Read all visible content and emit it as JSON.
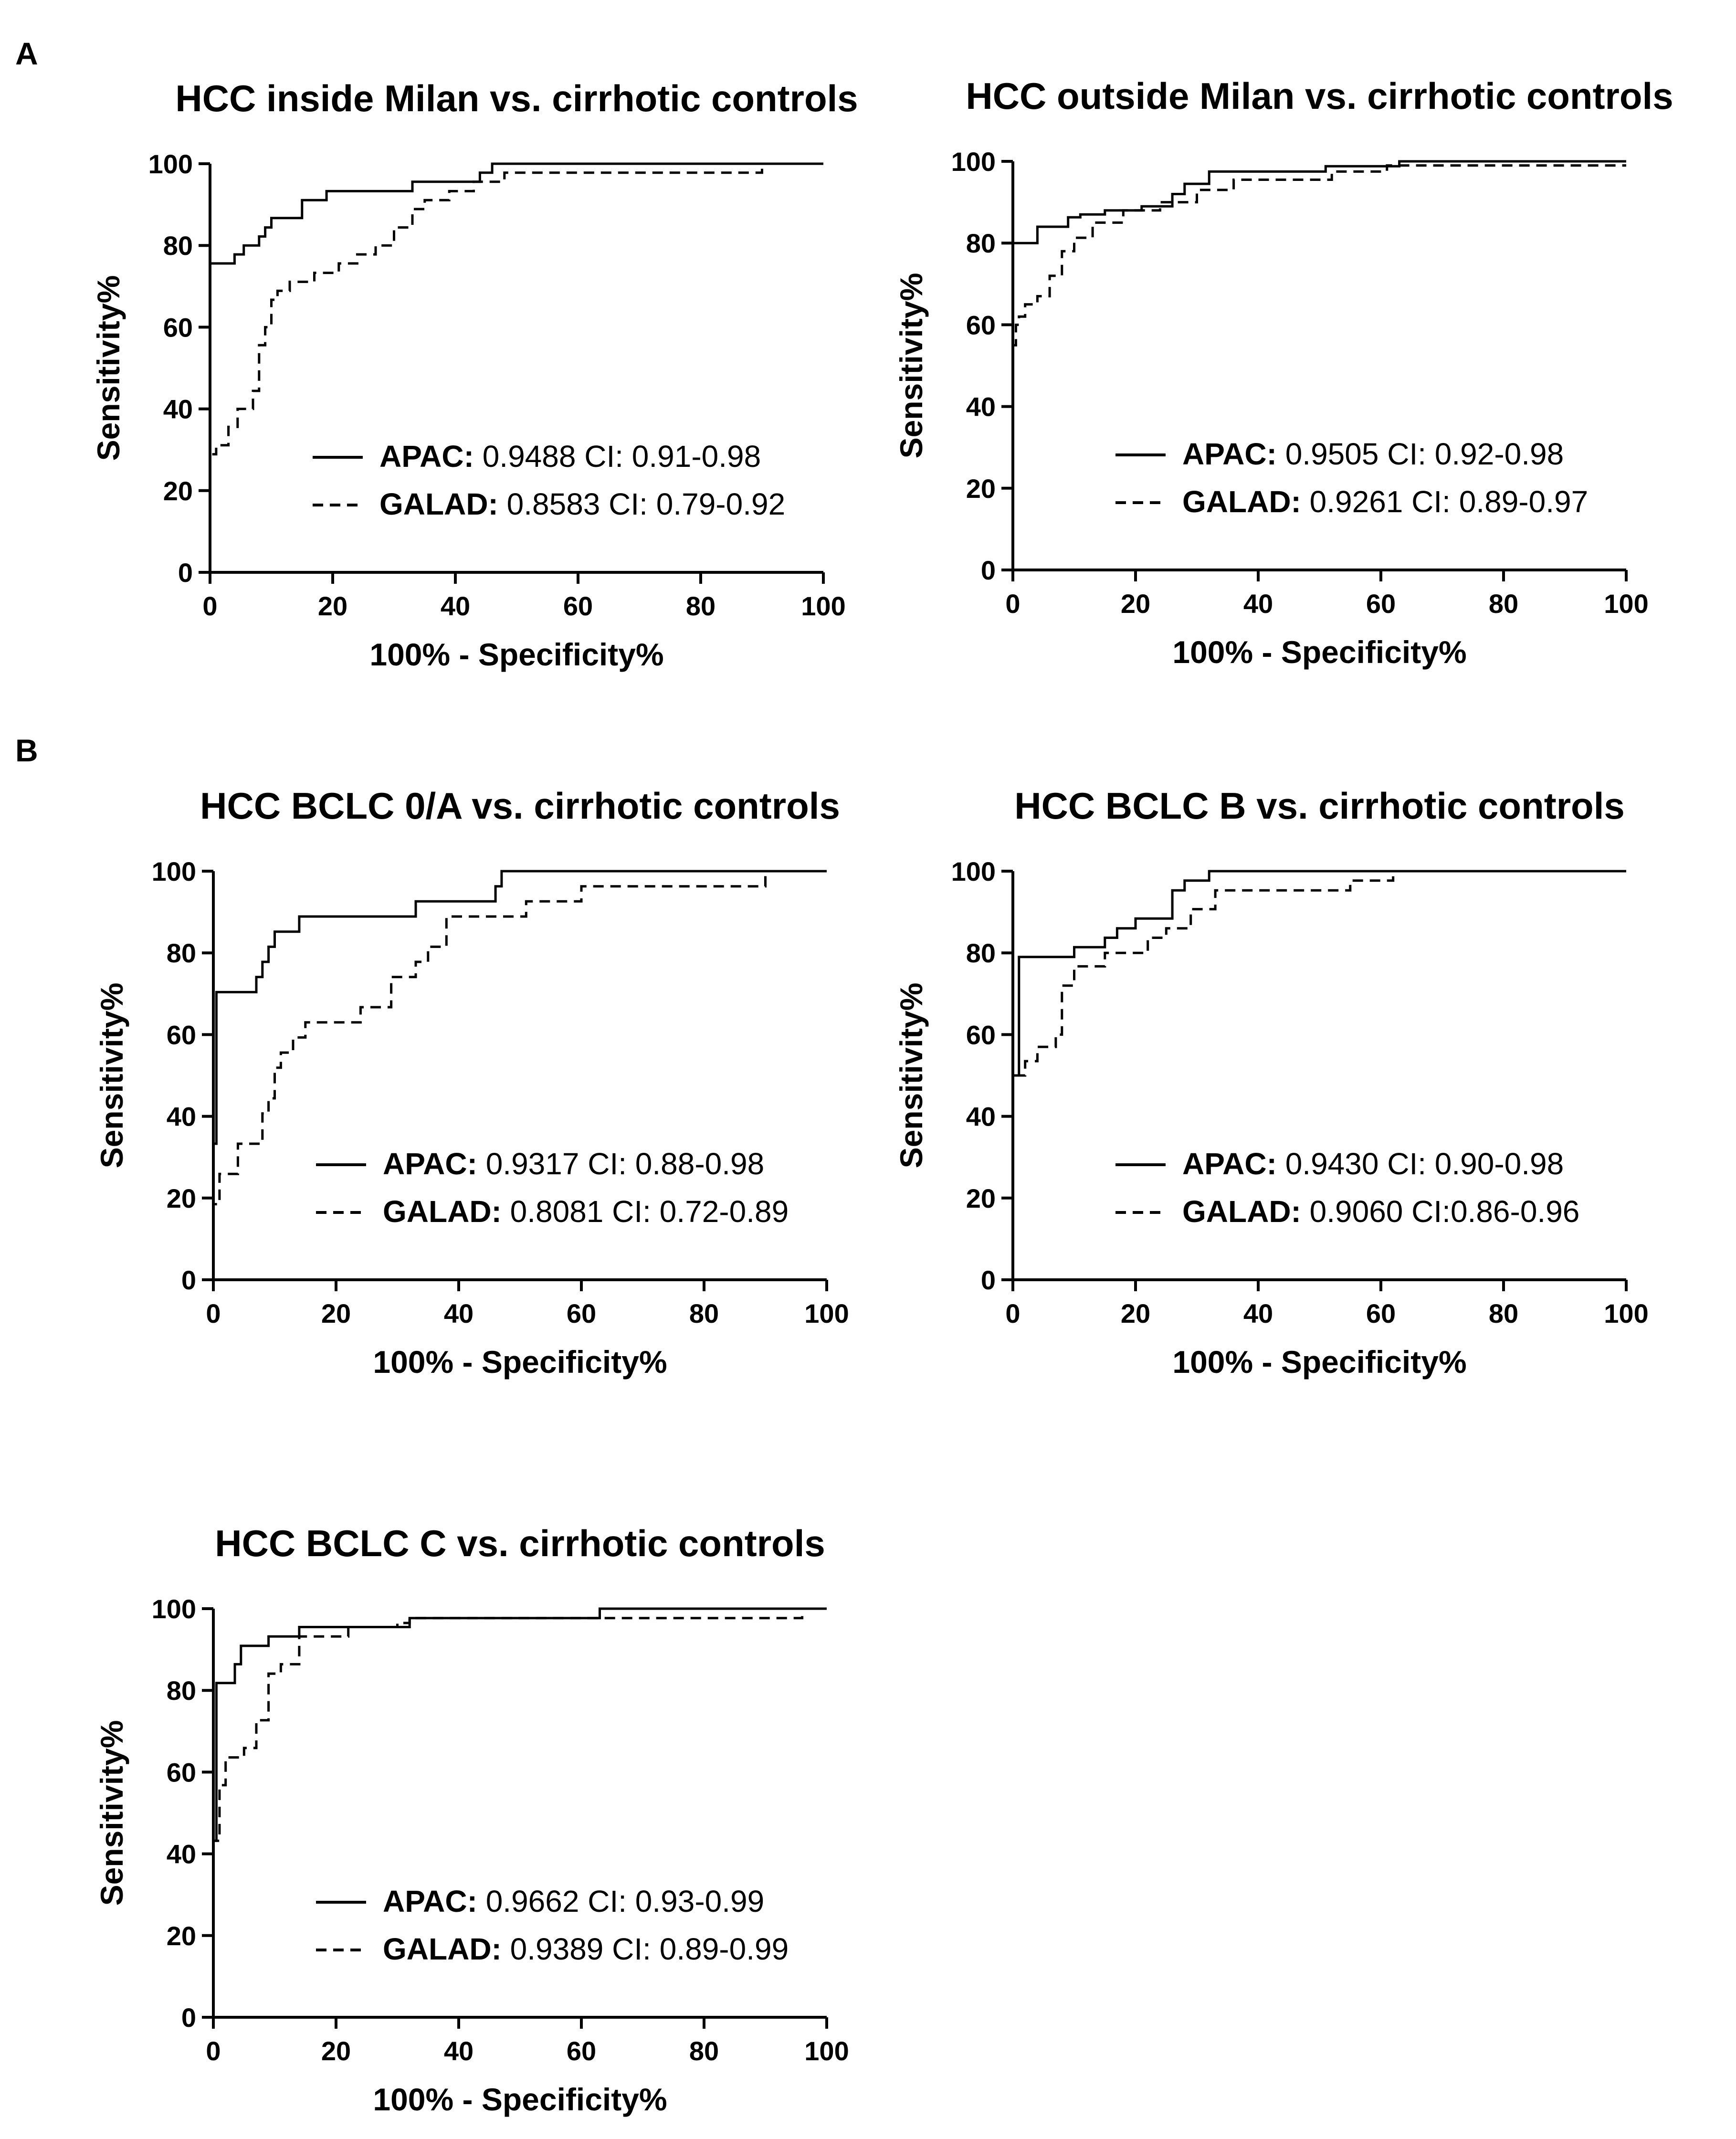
{
  "panels": [
    "A",
    "B"
  ],
  "chart_data": [
    {
      "type": "line",
      "title": "HCC inside Milan vs. cirrhotic controls",
      "xlabel": "100% - Specificity%",
      "ylabel": "Sensitivity%",
      "xlim": [
        0,
        100
      ],
      "ylim": [
        0,
        100
      ],
      "xticks": [
        "0",
        "20",
        "40",
        "60",
        "80",
        "100"
      ],
      "yticks": [
        "0",
        "20",
        "40",
        "60",
        "80",
        "100"
      ],
      "series": [
        {
          "name": "APAC:",
          "stat": "0.9488 CI: 0.91-0.98",
          "style": "solid",
          "x": [
            0,
            0,
            0.5,
            0.5,
            4,
            4,
            5.5,
            5.5,
            7,
            7,
            8,
            8,
            9,
            9,
            10,
            10,
            11,
            11,
            15,
            15,
            19,
            19,
            33,
            33,
            44,
            44,
            46,
            46,
            100
          ],
          "y": [
            0,
            75.6,
            75.6,
            75.6,
            75.6,
            77.8,
            77.8,
            80,
            80,
            80,
            80,
            82.2,
            82.2,
            84.4,
            84.4,
            86.7,
            86.7,
            86.7,
            86.7,
            91.1,
            91.1,
            93.3,
            93.3,
            95.6,
            95.6,
            97.8,
            97.8,
            100,
            100
          ]
        },
        {
          "name": "GALAD:",
          "stat": "0.8583 CI: 0.79-0.92",
          "style": "dashed",
          "x": [
            0,
            0,
            1,
            1,
            3,
            3,
            4.5,
            4.5,
            7,
            7,
            8,
            8,
            9,
            9,
            10,
            10,
            11,
            11,
            13,
            13,
            17,
            17,
            21,
            21,
            24,
            24,
            27,
            27,
            30,
            30,
            33,
            33,
            35,
            35,
            39,
            39,
            43,
            43,
            48,
            48,
            55,
            55,
            90,
            90,
            100
          ],
          "y": [
            0,
            28.9,
            28.9,
            31.1,
            31.1,
            35.6,
            35.6,
            40,
            40,
            44.4,
            44.4,
            55.6,
            55.6,
            60,
            60,
            66.7,
            66.7,
            68.9,
            68.9,
            71.1,
            71.1,
            73.3,
            73.3,
            75.6,
            75.6,
            77.8,
            77.8,
            80,
            80,
            84.4,
            84.4,
            88.9,
            88.9,
            91.1,
            91.1,
            93.3,
            93.3,
            95.6,
            95.6,
            97.8,
            97.8,
            97.8,
            97.8,
            100,
            100
          ]
        }
      ]
    },
    {
      "type": "line",
      "title": "HCC outside Milan vs. cirrhotic controls",
      "xlabel": "100% - Specificity%",
      "ylabel": "Sensitivity%",
      "xlim": [
        0,
        100
      ],
      "ylim": [
        0,
        100
      ],
      "xticks": [
        "0",
        "20",
        "40",
        "60",
        "80",
        "100"
      ],
      "yticks": [
        "0",
        "20",
        "40",
        "60",
        "80",
        "100"
      ],
      "series": [
        {
          "name": "APAC:",
          "stat": "0.9505 CI: 0.92-0.98",
          "style": "solid",
          "x": [
            0,
            0,
            1,
            1,
            4,
            4,
            9,
            9,
            11,
            11,
            15,
            15,
            21,
            21,
            26,
            26,
            28,
            28,
            32,
            32,
            51,
            51,
            63,
            63,
            100
          ],
          "y": [
            0,
            80,
            80,
            80,
            80,
            84,
            84,
            86.3,
            86.3,
            87,
            87,
            88,
            88,
            89,
            89,
            92,
            92,
            94.5,
            94.5,
            97.5,
            97.5,
            98.8,
            98.8,
            100,
            100
          ]
        },
        {
          "name": "GALAD:",
          "stat": "0.9261 CI: 0.89-0.97",
          "style": "dashed",
          "x": [
            0,
            0,
            0.5,
            0.5,
            1,
            1,
            2,
            2,
            4,
            4,
            6,
            6,
            8,
            8,
            10,
            10,
            13,
            13,
            18,
            18,
            24,
            24,
            30,
            30,
            36,
            36,
            52,
            52,
            61,
            61,
            100
          ],
          "y": [
            0,
            55,
            55,
            60,
            60,
            62,
            62,
            65,
            65,
            67,
            67,
            72,
            72,
            78,
            78,
            81.3,
            81.3,
            85,
            85,
            88,
            88,
            90,
            90,
            93,
            93,
            95.5,
            95.5,
            97.5,
            97.5,
            99,
            99
          ]
        }
      ]
    },
    {
      "type": "line",
      "title": "HCC BCLC 0/A vs. cirrhotic controls",
      "xlabel": "100% - Specificity%",
      "ylabel": "Sensitivity%",
      "xlim": [
        0,
        100
      ],
      "ylim": [
        0,
        100
      ],
      "xticks": [
        "0",
        "20",
        "40",
        "60",
        "80",
        "100"
      ],
      "yticks": [
        "0",
        "20",
        "40",
        "60",
        "80",
        "100"
      ],
      "series": [
        {
          "name": "APAC:",
          "stat": "0.9317 CI: 0.88-0.98",
          "style": "solid",
          "x": [
            0,
            0,
            0.5,
            0.5,
            7,
            7,
            8,
            8,
            9,
            9,
            10,
            10,
            11,
            11,
            14,
            14,
            15,
            15,
            33,
            33,
            46,
            46,
            47,
            47,
            100
          ],
          "y": [
            0,
            33.3,
            33.3,
            70.4,
            70.4,
            74.1,
            74.1,
            77.8,
            77.8,
            81.5,
            81.5,
            85.2,
            85.2,
            85.2,
            85.2,
            88.9,
            88.9,
            88.9,
            88.9,
            92.6,
            92.6,
            96.3,
            96.3,
            100,
            100
          ]
        },
        {
          "name": "GALAD:",
          "stat": "0.8081 CI: 0.72-0.89",
          "style": "dashed",
          "x": [
            0,
            0,
            1,
            1,
            4,
            4,
            8,
            8,
            9,
            9,
            10,
            10,
            11,
            11,
            13,
            13,
            15,
            15,
            24,
            24,
            29,
            29,
            33,
            33,
            35,
            35,
            38,
            38,
            51,
            51,
            60,
            60,
            90,
            90,
            100
          ],
          "y": [
            0,
            18.5,
            18.5,
            25.9,
            25.9,
            33.3,
            33.3,
            40.7,
            40.7,
            44.4,
            44.4,
            51.9,
            51.9,
            55.6,
            55.6,
            59.3,
            59.3,
            63,
            63,
            66.7,
            66.7,
            74.1,
            74.1,
            77.8,
            77.8,
            81.5,
            81.5,
            88.9,
            88.9,
            92.6,
            92.6,
            96.3,
            96.3,
            100,
            100
          ]
        }
      ]
    },
    {
      "type": "line",
      "title": "HCC BCLC B vs. cirrhotic controls",
      "xlabel": "100% - Specificity%",
      "ylabel": "Sensitivity%",
      "xlim": [
        0,
        100
      ],
      "ylim": [
        0,
        100
      ],
      "xticks": [
        "0",
        "20",
        "40",
        "60",
        "80",
        "100"
      ],
      "yticks": [
        "0",
        "20",
        "40",
        "60",
        "80",
        "100"
      ],
      "series": [
        {
          "name": "APAC:",
          "stat": "0.9430 CI: 0.90-0.98",
          "style": "solid",
          "x": [
            0,
            0,
            1,
            1,
            10,
            10,
            15,
            15,
            17,
            17,
            20,
            20,
            26,
            26,
            28,
            28,
            32,
            32,
            51,
            51,
            100
          ],
          "y": [
            0,
            50,
            50,
            79,
            79,
            81.4,
            81.4,
            83.7,
            83.7,
            86,
            86,
            88.4,
            88.4,
            95.3,
            95.3,
            97.7,
            97.7,
            100,
            100,
            100,
            100
          ]
        },
        {
          "name": "GALAD:",
          "stat": "0.9060 CI:0.86-0.96",
          "style": "dashed",
          "x": [
            0,
            0,
            2,
            2,
            4,
            4,
            7,
            7,
            8,
            8,
            10,
            10,
            15,
            15,
            22,
            22,
            25,
            25,
            29,
            29,
            33,
            33,
            55,
            55,
            62,
            62,
            100
          ],
          "y": [
            0,
            50,
            50,
            53.5,
            53.5,
            57,
            57,
            60,
            60,
            72,
            72,
            76.7,
            76.7,
            80,
            80,
            83.7,
            83.7,
            86,
            86,
            90.7,
            90.7,
            95.3,
            95.3,
            97.7,
            97.7,
            100,
            100
          ]
        }
      ]
    },
    {
      "type": "line",
      "title": "HCC BCLC C vs. cirrhotic controls",
      "xlabel": "100% - Specificity%",
      "ylabel": "Sensitivity%",
      "xlim": [
        0,
        100
      ],
      "ylim": [
        0,
        100
      ],
      "xticks": [
        "0",
        "20",
        "40",
        "60",
        "80",
        "100"
      ],
      "yticks": [
        "0",
        "20",
        "40",
        "60",
        "80",
        "100"
      ],
      "series": [
        {
          "name": "APAC:",
          "stat": "0.9662 CI: 0.93-0.99",
          "style": "solid",
          "x": [
            0,
            0,
            0.5,
            0.5,
            3.5,
            3.5,
            4.5,
            4.5,
            9,
            9,
            14,
            14,
            32,
            32,
            63,
            63,
            100
          ],
          "y": [
            0,
            43.2,
            43.2,
            81.8,
            81.8,
            86.4,
            86.4,
            90.9,
            90.9,
            93.2,
            93.2,
            95.5,
            95.5,
            97.7,
            97.7,
            100,
            100
          ]
        },
        {
          "name": "GALAD:",
          "stat": "0.9389 CI: 0.89-0.99",
          "style": "dashed",
          "x": [
            0,
            0,
            1,
            1,
            2,
            2,
            5,
            5,
            7,
            7,
            9,
            9,
            11,
            11,
            14,
            14,
            22,
            22,
            30,
            30,
            32,
            32,
            62,
            62,
            96,
            96,
            100
          ],
          "y": [
            0,
            43.2,
            43.2,
            56.8,
            56.8,
            63.6,
            63.6,
            65.9,
            65.9,
            72.7,
            72.7,
            84.1,
            84.1,
            86.4,
            86.4,
            93.2,
            93.2,
            95.5,
            95.5,
            96.5,
            96.5,
            97.7,
            97.7,
            97.7,
            97.7,
            100,
            100
          ]
        }
      ]
    }
  ]
}
